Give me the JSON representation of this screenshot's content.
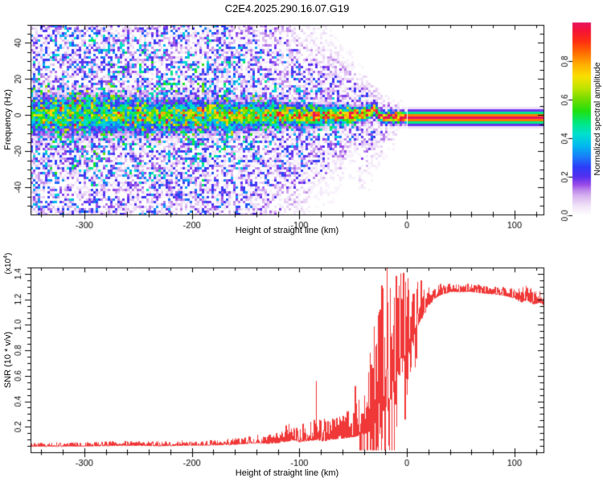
{
  "title": "C2E4.2025.290.16.07.G19",
  "colors": {
    "curve": "#f03838",
    "frame": "#000000",
    "background": "#ffffff",
    "text": "#000000"
  },
  "colorbar": {
    "label": "Normalized spectral amplitude",
    "tick_labels": [
      "0.0",
      "0.2",
      "0.4",
      "0.6",
      "0.8"
    ],
    "tick_values": [
      0,
      0.2,
      0.4,
      0.6,
      0.8
    ],
    "stops": [
      [
        0,
        "#ffffff"
      ],
      [
        0.05,
        "#f0e2f8"
      ],
      [
        0.1,
        "#d8b4f0"
      ],
      [
        0.13,
        "#bc88ea"
      ],
      [
        0.16,
        "#9a4ae8"
      ],
      [
        0.2,
        "#5530f0"
      ],
      [
        0.25,
        "#2d3df8"
      ],
      [
        0.3,
        "#1a7af8"
      ],
      [
        0.36,
        "#00b8f0"
      ],
      [
        0.42,
        "#00e0d0"
      ],
      [
        0.48,
        "#00e880"
      ],
      [
        0.54,
        "#20e010"
      ],
      [
        0.6,
        "#70dc00"
      ],
      [
        0.66,
        "#c0e400"
      ],
      [
        0.72,
        "#fae000"
      ],
      [
        0.78,
        "#ffb000"
      ],
      [
        0.84,
        "#ff7000"
      ],
      [
        0.9,
        "#ff3010"
      ],
      [
        0.96,
        "#f41238"
      ],
      [
        1,
        "#e61460"
      ]
    ]
  },
  "chart_data": [
    {
      "type": "heatmap",
      "title": "C2E4.2025.290.16.07.G19",
      "xlabel": "Height of straight line (km)",
      "ylabel": "Frequency (Hz)",
      "xlim": [
        -350,
        127
      ],
      "ylim": [
        -55,
        50
      ],
      "x_major_ticks": [
        -300,
        -200,
        -100,
        0,
        100
      ],
      "x_tick_labels": [
        "-300",
        "-200",
        "-100",
        "0",
        "100"
      ],
      "x_minor_step": 20,
      "y_major_ticks": [
        40,
        20,
        0,
        -20,
        -40
      ],
      "y_tick_labels": [
        "40",
        "20",
        "0",
        "-20",
        "-40"
      ],
      "y_minor_step": 5,
      "legend": "colorbar right, values 0.0-1.0, Normalized spectral amplitude",
      "signal_track_f0": [
        [
          -350,
          -0.3
        ],
        [
          -300,
          0.4
        ],
        [
          -250,
          -0.6
        ],
        [
          -200,
          0.3
        ],
        [
          -160,
          -0.4
        ],
        [
          -120,
          0.3
        ],
        [
          -90,
          -0.6
        ],
        [
          -70,
          0.2
        ],
        [
          -55,
          -0.3
        ],
        [
          -45,
          0.4
        ],
        [
          -38,
          1.0
        ],
        [
          -33,
          2.6
        ],
        [
          -30,
          3.6
        ],
        [
          -27,
          1.5
        ],
        [
          -25,
          -1.8
        ],
        [
          -22,
          -0.5
        ],
        [
          -19,
          -2.2
        ],
        [
          -16,
          -0.2
        ],
        [
          -13,
          -2.0
        ],
        [
          -10,
          -0.6
        ],
        [
          -7,
          -2.0
        ],
        [
          -4,
          -0.8
        ],
        [
          -1,
          -1.8
        ],
        [
          1,
          -1.4
        ],
        [
          127,
          -1.4
        ]
      ],
      "signal_strength": [
        [
          -350,
          0.42
        ],
        [
          -280,
          0.46
        ],
        [
          -220,
          0.5
        ],
        [
          -170,
          0.56
        ],
        [
          -120,
          0.66
        ],
        [
          -80,
          0.76
        ],
        [
          -50,
          0.86
        ],
        [
          -35,
          0.96
        ],
        [
          -25,
          1
        ],
        [
          127,
          1
        ]
      ],
      "signal_width_hz": [
        [
          -350,
          9
        ],
        [
          -250,
          8
        ],
        [
          -180,
          6.5
        ],
        [
          -130,
          5.5
        ],
        [
          -90,
          4.5
        ],
        [
          -60,
          3.8
        ],
        [
          -40,
          3.2
        ],
        [
          -30,
          2.8
        ],
        [
          -20,
          2.6
        ],
        [
          0,
          2.8
        ],
        [
          127,
          3.0
        ]
      ],
      "noise_amp": [
        [
          -350,
          0.5
        ],
        [
          -200,
          0.5
        ],
        [
          -150,
          0.47
        ],
        [
          -110,
          0.43
        ],
        [
          -80,
          0.4
        ],
        [
          -55,
          0.36
        ],
        [
          -35,
          0.3
        ],
        [
          -20,
          0.24
        ],
        [
          -5,
          0.16
        ],
        [
          4,
          0.1
        ],
        [
          6,
          0
        ]
      ],
      "noise_fmax_hz": [
        [
          -350,
          60
        ],
        [
          -170,
          58
        ],
        [
          -130,
          45
        ],
        [
          -95,
          32
        ],
        [
          -65,
          22
        ],
        [
          -45,
          15
        ],
        [
          -32,
          12
        ],
        [
          -20,
          8
        ],
        [
          -5,
          5
        ],
        [
          4,
          3
        ],
        [
          6,
          0.5
        ]
      ],
      "stripe": {
        "start_km": 0.7,
        "f0_hz": -1.4,
        "sigma_hz": 3.1
      }
    },
    {
      "type": "line",
      "xlabel": "Height of straight line (km)",
      "ylabel": "SNR (10 * v/v)",
      "y_scale": {
        "prefix": "(x10",
        "exponent": "4",
        "suffix": ")"
      },
      "xlim": [
        -350,
        127
      ],
      "ylim": [
        0,
        1.45
      ],
      "x_major_ticks": [
        -300,
        -200,
        -100,
        0,
        100
      ],
      "x_tick_labels": [
        "-300",
        "-200",
        "-100",
        "0",
        "100"
      ],
      "x_minor_step": 20,
      "y_major_ticks": [
        0.2,
        0.4,
        0.6,
        0.8,
        1.0,
        1.2,
        1.4
      ],
      "y_tick_labels": [
        "0.2",
        "0.4",
        "0.6",
        "0.8",
        "1.0",
        "1.2",
        "1.4"
      ],
      "y_minor_step": 0.05,
      "line_color": "#f03838",
      "envelope": [
        [
          -350,
          0.05
        ],
        [
          -300,
          0.052
        ],
        [
          -260,
          0.058
        ],
        [
          -230,
          0.055
        ],
        [
          -200,
          0.06
        ],
        [
          -180,
          0.062
        ],
        [
          -160,
          0.068
        ],
        [
          -150,
          0.075
        ],
        [
          -140,
          0.085
        ],
        [
          -130,
          0.08
        ],
        [
          -120,
          0.09
        ],
        [
          -112,
          0.105
        ],
        [
          -105,
          0.12
        ],
        [
          -100,
          0.105
        ],
        [
          -92,
          0.115
        ],
        [
          -85,
          0.125
        ],
        [
          -78,
          0.115
        ],
        [
          -70,
          0.13
        ],
        [
          -62,
          0.14
        ],
        [
          -55,
          0.15
        ],
        [
          -48,
          0.165
        ],
        [
          -42,
          0.2
        ],
        [
          -37,
          0.24
        ],
        [
          -32,
          0.3
        ],
        [
          -28,
          0.42
        ],
        [
          -25,
          0.6
        ],
        [
          -22,
          0.52
        ],
        [
          -19,
          0.7
        ],
        [
          -16,
          0.56
        ],
        [
          -13,
          0.62
        ],
        [
          -10,
          0.7
        ],
        [
          -7,
          0.78
        ],
        [
          -4,
          0.82
        ],
        [
          -1,
          0.86
        ],
        [
          2,
          0.92
        ],
        [
          5,
          0.98
        ],
        [
          8,
          1.02
        ],
        [
          12,
          1.08
        ],
        [
          16,
          1.13
        ],
        [
          20,
          1.18
        ],
        [
          25,
          1.22
        ],
        [
          30,
          1.245
        ],
        [
          36,
          1.26
        ],
        [
          42,
          1.27
        ],
        [
          50,
          1.268
        ],
        [
          58,
          1.272
        ],
        [
          66,
          1.262
        ],
        [
          75,
          1.255
        ],
        [
          84,
          1.248
        ],
        [
          92,
          1.24
        ],
        [
          100,
          1.225
        ],
        [
          106,
          1.195
        ],
        [
          112,
          1.21
        ],
        [
          118,
          1.18
        ],
        [
          123,
          1.195
        ],
        [
          127,
          1.175
        ]
      ],
      "noise_sigma": [
        [
          -350,
          0.01
        ],
        [
          -250,
          0.012
        ],
        [
          -180,
          0.014
        ],
        [
          -150,
          0.018
        ],
        [
          -125,
          0.028
        ],
        [
          -108,
          0.045
        ],
        [
          -95,
          0.05
        ],
        [
          -80,
          0.055
        ],
        [
          -65,
          0.06
        ],
        [
          -52,
          0.07
        ],
        [
          -44,
          0.1
        ],
        [
          -38,
          0.15
        ],
        [
          -32,
          0.22
        ],
        [
          -27,
          0.3
        ],
        [
          -22,
          0.33
        ],
        [
          -17,
          0.33
        ],
        [
          -12,
          0.3
        ],
        [
          -7,
          0.26
        ],
        [
          -2,
          0.22
        ],
        [
          3,
          0.18
        ],
        [
          8,
          0.14
        ],
        [
          14,
          0.09
        ],
        [
          20,
          0.055
        ],
        [
          28,
          0.03
        ],
        [
          40,
          0.022
        ],
        [
          60,
          0.02
        ],
        [
          85,
          0.022
        ],
        [
          105,
          0.035
        ],
        [
          115,
          0.04
        ],
        [
          127,
          0.035
        ]
      ],
      "forced_spikes": [
        [
          -84,
          0.56
        ],
        [
          -48,
          0.52
        ],
        [
          -34,
          0.78
        ],
        [
          -26,
          1.1
        ],
        [
          -18.5,
          1.448
        ],
        [
          -8,
          0.95
        ],
        [
          -3,
          1.1
        ],
        [
          0.7,
          1.22
        ]
      ]
    }
  ]
}
